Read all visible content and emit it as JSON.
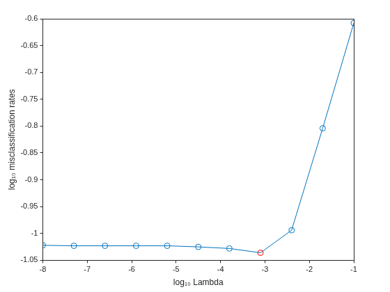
{
  "chart_data": {
    "type": "line",
    "x_label": "log₁₀ Lambda",
    "y_label": "log₁₀ misclassification rates",
    "x": [
      -8,
      -7.3,
      -6.6,
      -5.9,
      -5.2,
      -4.5,
      -3.8,
      -3.1,
      -2.4,
      -1.7,
      -1
    ],
    "values": [
      -1.022,
      -1.023,
      -1.023,
      -1.023,
      -1.023,
      -1.025,
      -1.028,
      -1.036,
      -0.994,
      -0.804,
      -0.608
    ],
    "color": "#0072bd",
    "colors": [
      "#0072bd",
      "#0072bd",
      "#0072bd",
      "#0072bd",
      "#0072bd",
      "#0072bd",
      "#0072bd",
      "#ff0000",
      "#0072bd",
      "#0072bd",
      "#0072bd"
    ],
    "marker": "circle",
    "line_style": "solid",
    "xlim": [
      -8,
      -1
    ],
    "xticks": [
      -8,
      -7,
      -6,
      -5,
      -4,
      -3,
      -2,
      -1
    ],
    "ylim": [
      -1.05,
      -0.6
    ],
    "yticks": [
      -1.05,
      -1,
      -0.95,
      -0.9,
      -0.85,
      -0.8,
      -0.75,
      -0.7,
      -0.65,
      -0.6
    ],
    "grid": false
  }
}
